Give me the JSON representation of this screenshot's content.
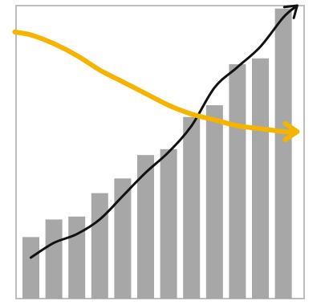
{
  "chart_data": {
    "type": "bar",
    "categories": [
      "",
      "",
      "",
      "",
      "",
      "",
      "",
      "",
      "",
      "",
      "",
      ""
    ],
    "values": [
      21,
      27,
      28,
      36,
      41,
      49,
      51,
      62,
      66,
      80,
      82,
      99
    ],
    "ylim": [
      0,
      100
    ],
    "grid": false,
    "legend": "none",
    "overlays": [
      {
        "type": "line",
        "arrow_end": true,
        "x": [
          0,
          1,
          2,
          3,
          4,
          5,
          6,
          7,
          8,
          9,
          10,
          11,
          11.6
        ],
        "y": [
          14,
          19,
          22,
          27,
          35,
          43,
          50,
          59,
          72,
          79,
          86,
          96,
          100
        ]
      },
      {
        "type": "line",
        "arrow_end": true,
        "x": [
          -0.7,
          0,
          1,
          2,
          3,
          4,
          5,
          6,
          7,
          8,
          9,
          10,
          11,
          11.6
        ],
        "y": [
          91,
          90,
          87,
          83,
          78,
          74,
          70,
          66,
          63,
          61,
          59,
          58,
          57,
          57
        ]
      }
    ]
  },
  "colors": {
    "bar": "#a7a7a7",
    "frame": "#bdbdbd",
    "trend_line": "#111111",
    "decline_arrow": "#f5b400",
    "background": "#ffffff"
  }
}
